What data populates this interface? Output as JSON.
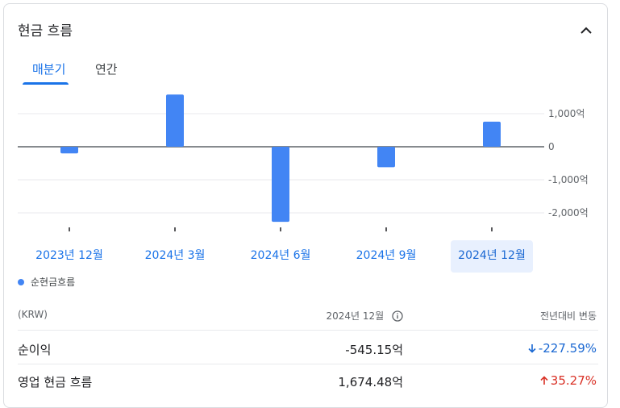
{
  "header": {
    "title": "현금 흐름"
  },
  "tabs": [
    {
      "label": "매분기",
      "active": true
    },
    {
      "label": "연간",
      "active": false
    }
  ],
  "chart_data": {
    "type": "bar",
    "categories": [
      "2023년 12월",
      "2024년 3월",
      "2024년 6월",
      "2024년 9월",
      "2024년 12월"
    ],
    "values": [
      -200,
      1580,
      -2270,
      -620,
      760
    ],
    "selected_index": 4,
    "yticks": [
      {
        "value": 1000,
        "label": "1,000억"
      },
      {
        "value": 0,
        "label": "0"
      },
      {
        "value": -1000,
        "label": "-1,000억"
      },
      {
        "value": -2000,
        "label": "-2,000억"
      }
    ],
    "ylim": [
      -2300,
      1600
    ],
    "color": "#4285f4",
    "legend": [
      "순현금흐름"
    ]
  },
  "table": {
    "unit_label": "(KRW)",
    "period_label": "2024년 12월",
    "change_label": "전년대비 변동",
    "rows": [
      {
        "label": "순이익",
        "value": "-545.15억",
        "change": "-227.59%",
        "direction": "down"
      },
      {
        "label": "영업 현금 흐름",
        "value": "1,674.48억",
        "change": "35.27%",
        "direction": "up"
      }
    ]
  },
  "colors": {
    "accent": "#1a73e8",
    "bar": "#4285f4",
    "negative": "#1967d2",
    "positive": "#d93025"
  }
}
